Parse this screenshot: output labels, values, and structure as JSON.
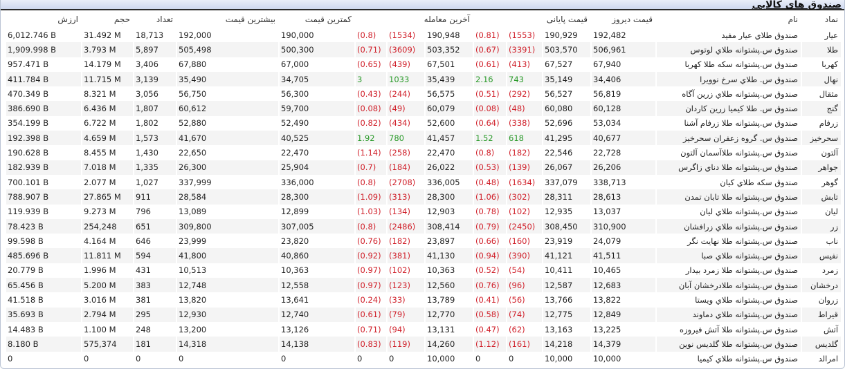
{
  "window": {
    "title": "صندوق های کالایی"
  },
  "table": {
    "headers": {
      "symbol": "نماد",
      "name": "نام",
      "yesterday_price": "قیمت دیروز",
      "closing_price": "قیمت پایانی",
      "last_trade": "آخرین معامله",
      "min_price": "کمترین قیمت",
      "max_price": "بیشترین قیمت",
      "count": "تعداد",
      "volume": "حجم",
      "value": "ارزش"
    },
    "colors": {
      "negative": "#d0202a",
      "positive": "#2a9a2a"
    },
    "rows": [
      {
        "symbol": "عيار",
        "name": "صندوق طلاي عيار مفيد",
        "yesterday": "192,482",
        "close": "190,929",
        "close_chg": "(1553)",
        "close_pct": "(0.81)",
        "last": "190,948",
        "last_chg": "(1534)",
        "last_pct": "(0.8)",
        "min": "190,000",
        "max": "192,000",
        "count": "18,713",
        "volume": "31.492 M",
        "value": "6,012.746 B",
        "close_dir": "neg",
        "last_dir": "neg"
      },
      {
        "symbol": "طلا",
        "name": "صندوق س.پشتوانه طلاي لوتوس",
        "yesterday": "506,961",
        "close": "503,570",
        "close_chg": "(3391)",
        "close_pct": "(0.67)",
        "last": "503,352",
        "last_chg": "(3609)",
        "last_pct": "(0.71)",
        "min": "500,300",
        "max": "505,498",
        "count": "5,897",
        "volume": "3.793 M",
        "value": "1,909.998 B",
        "close_dir": "neg",
        "last_dir": "neg"
      },
      {
        "symbol": "كهربا",
        "name": "صندوق س.پشتوانه سكه طلا كهربا",
        "yesterday": "67,940",
        "close": "67,527",
        "close_chg": "(413)",
        "close_pct": "(0.61)",
        "last": "67,501",
        "last_chg": "(439)",
        "last_pct": "(0.65)",
        "min": "67,000",
        "max": "67,880",
        "count": "3,406",
        "volume": "14.179 M",
        "value": "957.471 B",
        "close_dir": "neg",
        "last_dir": "neg"
      },
      {
        "symbol": "نهال",
        "name": "صندوق س. طلاي سرخ نوويرا",
        "yesterday": "34,406",
        "close": "35,149",
        "close_chg": "743",
        "close_pct": "2.16",
        "last": "35,439",
        "last_chg": "1033",
        "last_pct": "3",
        "min": "34,705",
        "max": "35,490",
        "count": "3,139",
        "volume": "11.715 M",
        "value": "411.784 B",
        "close_dir": "pos",
        "last_dir": "pos"
      },
      {
        "symbol": "مثقال",
        "name": "صندوق س.پشتوانه طلاي زرين آگاه",
        "yesterday": "56,819",
        "close": "56,527",
        "close_chg": "(292)",
        "close_pct": "(0.51)",
        "last": "56,575",
        "last_chg": "(244)",
        "last_pct": "(0.43)",
        "min": "56,300",
        "max": "56,750",
        "count": "3,056",
        "volume": "8.321 M",
        "value": "470.349 B",
        "close_dir": "neg",
        "last_dir": "neg"
      },
      {
        "symbol": "گنج",
        "name": "صندوق س. طلا كيميا زرين كاردان",
        "yesterday": "60,128",
        "close": "60,080",
        "close_chg": "(48)",
        "close_pct": "(0.08)",
        "last": "60,079",
        "last_chg": "(49)",
        "last_pct": "(0.08)",
        "min": "59,700",
        "max": "60,612",
        "count": "1,807",
        "volume": "6.436 M",
        "value": "386.690 B",
        "close_dir": "neg",
        "last_dir": "neg"
      },
      {
        "symbol": "زرفام",
        "name": "صندوق س.پشتوانه طلا زرفام آشنا",
        "yesterday": "53,034",
        "close": "52,696",
        "close_chg": "(338)",
        "close_pct": "(0.64)",
        "last": "52,600",
        "last_chg": "(434)",
        "last_pct": "(0.82)",
        "min": "52,490",
        "max": "52,880",
        "count": "1,802",
        "volume": "6.722 M",
        "value": "354.199 B",
        "close_dir": "neg",
        "last_dir": "neg"
      },
      {
        "symbol": "سحرخيز",
        "name": "صندوق س. گروه زعفران سحرخيز",
        "yesterday": "40,677",
        "close": "41,295",
        "close_chg": "618",
        "close_pct": "1.52",
        "last": "41,457",
        "last_chg": "780",
        "last_pct": "1.92",
        "min": "40,525",
        "max": "41,670",
        "count": "1,573",
        "volume": "4.659 M",
        "value": "192.398 B",
        "close_dir": "pos",
        "last_dir": "pos"
      },
      {
        "symbol": "آلتون",
        "name": "صندوق س.پشتوانه طلاآسمان آلتون",
        "yesterday": "22,728",
        "close": "22,546",
        "close_chg": "(182)",
        "close_pct": "(0.8)",
        "last": "22,470",
        "last_chg": "(258)",
        "last_pct": "(1.14)",
        "min": "22,470",
        "max": "22,650",
        "count": "1,430",
        "volume": "8.455 M",
        "value": "190.628 B",
        "close_dir": "neg",
        "last_dir": "neg"
      },
      {
        "symbol": "جواهر",
        "name": "صندوق س.پشتوانه طلا دناي زاگرس",
        "yesterday": "26,206",
        "close": "26,067",
        "close_chg": "(139)",
        "close_pct": "(0.53)",
        "last": "26,022",
        "last_chg": "(184)",
        "last_pct": "(0.7)",
        "min": "25,904",
        "max": "26,300",
        "count": "1,335",
        "volume": "7.018 M",
        "value": "182.939 B",
        "close_dir": "neg",
        "last_dir": "neg"
      },
      {
        "symbol": "گوهر",
        "name": "صندوق سكه طلاي كيان",
        "yesterday": "338,713",
        "close": "337,079",
        "close_chg": "(1634)",
        "close_pct": "(0.48)",
        "last": "336,005",
        "last_chg": "(2708)",
        "last_pct": "(0.8)",
        "min": "336,000",
        "max": "337,999",
        "count": "1,027",
        "volume": "2.077 M",
        "value": "700.101 B",
        "close_dir": "neg",
        "last_dir": "neg"
      },
      {
        "symbol": "تابش",
        "name": "صندوق س.پشتوانه طلا تابان تمدن",
        "yesterday": "28,613",
        "close": "28,311",
        "close_chg": "(302)",
        "close_pct": "(1.06)",
        "last": "28,300",
        "last_chg": "(313)",
        "last_pct": "(1.09)",
        "min": "28,300",
        "max": "28,584",
        "count": "911",
        "volume": "27.865 M",
        "value": "788.907 B",
        "close_dir": "neg",
        "last_dir": "neg"
      },
      {
        "symbol": "ليان",
        "name": "صندوق س.پشتوانه طلاي ليان",
        "yesterday": "13,037",
        "close": "12,935",
        "close_chg": "(102)",
        "close_pct": "(0.78)",
        "last": "12,903",
        "last_chg": "(134)",
        "last_pct": "(1.03)",
        "min": "12,899",
        "max": "13,089",
        "count": "796",
        "volume": "9.273 M",
        "value": "119.939 B",
        "close_dir": "neg",
        "last_dir": "neg"
      },
      {
        "symbol": "زر",
        "name": "صندوق س.پشتوانه طلاي زرافشان",
        "yesterday": "310,900",
        "close": "308,450",
        "close_chg": "(2450)",
        "close_pct": "(0.79)",
        "last": "308,414",
        "last_chg": "(2486)",
        "last_pct": "(0.8)",
        "min": "307,005",
        "max": "309,800",
        "count": "651",
        "volume": "254,248",
        "value": "78.423 B",
        "close_dir": "neg",
        "last_dir": "neg"
      },
      {
        "symbol": "ناب",
        "name": "صندوق س.پشتوانه طلا نهايت نگر",
        "yesterday": "24,079",
        "close": "23,919",
        "close_chg": "(160)",
        "close_pct": "(0.66)",
        "last": "23,897",
        "last_chg": "(182)",
        "last_pct": "(0.76)",
        "min": "23,820",
        "max": "23,999",
        "count": "646",
        "volume": "4.164 M",
        "value": "99.598 B",
        "close_dir": "neg",
        "last_dir": "neg"
      },
      {
        "symbol": "نفيس",
        "name": "صندوق س.پشتوانه طلاي صبا",
        "yesterday": "41,511",
        "close": "41,121",
        "close_chg": "(390)",
        "close_pct": "(0.94)",
        "last": "41,130",
        "last_chg": "(381)",
        "last_pct": "(0.92)",
        "min": "40,860",
        "max": "41,800",
        "count": "594",
        "volume": "11.811 M",
        "value": "485.696 B",
        "close_dir": "neg",
        "last_dir": "neg"
      },
      {
        "symbol": "زمرد",
        "name": "صندوق س.پشتوانه طلا زمرد بيدار",
        "yesterday": "10,465",
        "close": "10,411",
        "close_chg": "(54)",
        "close_pct": "(0.52)",
        "last": "10,363",
        "last_chg": "(102)",
        "last_pct": "(0.97)",
        "min": "10,363",
        "max": "10,513",
        "count": "431",
        "volume": "1.996 M",
        "value": "20.779 B",
        "close_dir": "neg",
        "last_dir": "neg"
      },
      {
        "symbol": "درخشان",
        "name": "صندوق س.پشتوانه طلادرخشان آبان",
        "yesterday": "12,683",
        "close": "12,587",
        "close_chg": "(96)",
        "close_pct": "(0.76)",
        "last": "12,560",
        "last_chg": "(123)",
        "last_pct": "(0.97)",
        "min": "12,558",
        "max": "12,748",
        "count": "383",
        "volume": "5.200 M",
        "value": "65.456 B",
        "close_dir": "neg",
        "last_dir": "neg"
      },
      {
        "symbol": "زروان",
        "name": "صندوق س.پشتوانه طلاي ويستا",
        "yesterday": "13,822",
        "close": "13,766",
        "close_chg": "(56)",
        "close_pct": "(0.41)",
        "last": "13,789",
        "last_chg": "(33)",
        "last_pct": "(0.24)",
        "min": "13,641",
        "max": "13,820",
        "count": "381",
        "volume": "3.016 M",
        "value": "41.518 B",
        "close_dir": "neg",
        "last_dir": "neg"
      },
      {
        "symbol": "قيراط",
        "name": "صندوق س.پشتوانه طلاي دماوند",
        "yesterday": "12,849",
        "close": "12,775",
        "close_chg": "(74)",
        "close_pct": "(0.58)",
        "last": "12,770",
        "last_chg": "(79)",
        "last_pct": "(0.61)",
        "min": "12,740",
        "max": "12,930",
        "count": "295",
        "volume": "2.794 M",
        "value": "35.693 B",
        "close_dir": "neg",
        "last_dir": "neg"
      },
      {
        "symbol": "آتش",
        "name": "صندوق س.پشتوانه طلا آتش فيروزه",
        "yesterday": "13,225",
        "close": "13,163",
        "close_chg": "(62)",
        "close_pct": "(0.47)",
        "last": "13,131",
        "last_chg": "(94)",
        "last_pct": "(0.71)",
        "min": "13,126",
        "max": "13,200",
        "count": "248",
        "volume": "1.100 M",
        "value": "14.483 B",
        "close_dir": "neg",
        "last_dir": "neg"
      },
      {
        "symbol": "گلديس",
        "name": "صندوق س.پشتوانه طلا گلديس نوين",
        "yesterday": "14,379",
        "close": "14,218",
        "close_chg": "(161)",
        "close_pct": "(1.12)",
        "last": "14,260",
        "last_chg": "(119)",
        "last_pct": "(0.83)",
        "min": "14,138",
        "max": "14,318",
        "count": "181",
        "volume": "575,374",
        "value": "8.180 B",
        "close_dir": "neg",
        "last_dir": "neg"
      },
      {
        "symbol": "امرالد",
        "name": "صندوق س.پشتوانه طلاي كيميا",
        "yesterday": "10,000",
        "close": "10,000",
        "close_chg": "0",
        "close_pct": "0",
        "last": "10,000",
        "last_chg": "0",
        "last_pct": "0",
        "min": "0",
        "max": "0",
        "count": "0",
        "volume": "0",
        "value": "0",
        "close_dir": "zero",
        "last_dir": "zero"
      }
    ]
  }
}
